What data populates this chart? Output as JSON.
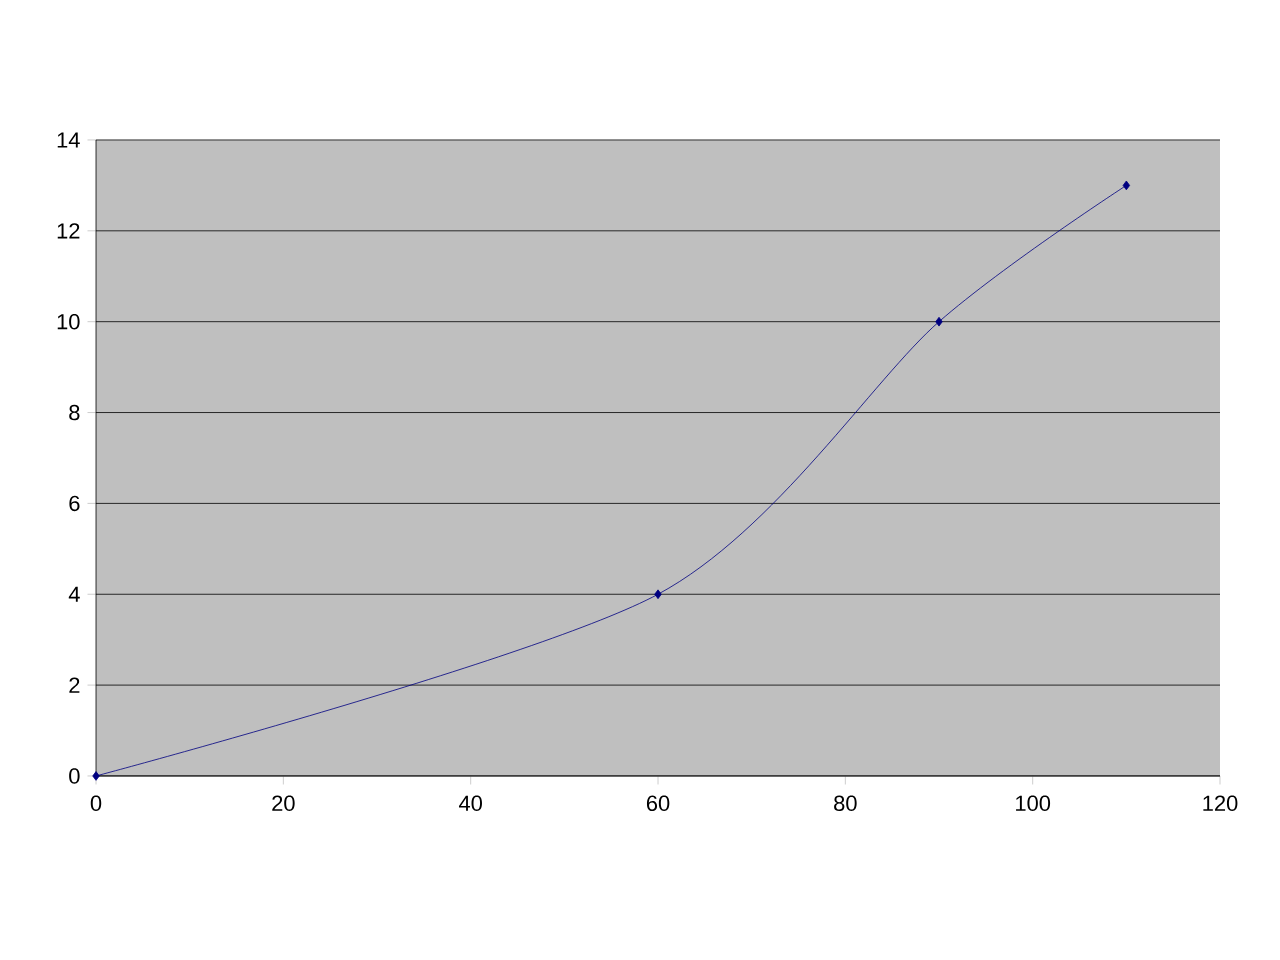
{
  "chart_data": {
    "type": "line",
    "x": [
      0,
      60,
      90,
      110
    ],
    "values": [
      0,
      4,
      10,
      13
    ],
    "color": "#000080",
    "marker": "diamond",
    "xlim": [
      0,
      120
    ],
    "xticks": [
      0,
      20,
      40,
      60,
      80,
      100,
      120
    ],
    "ylim": [
      0,
      14
    ],
    "yticks": [
      0,
      2,
      4,
      6,
      8,
      10,
      12,
      14
    ],
    "grid": "y"
  }
}
